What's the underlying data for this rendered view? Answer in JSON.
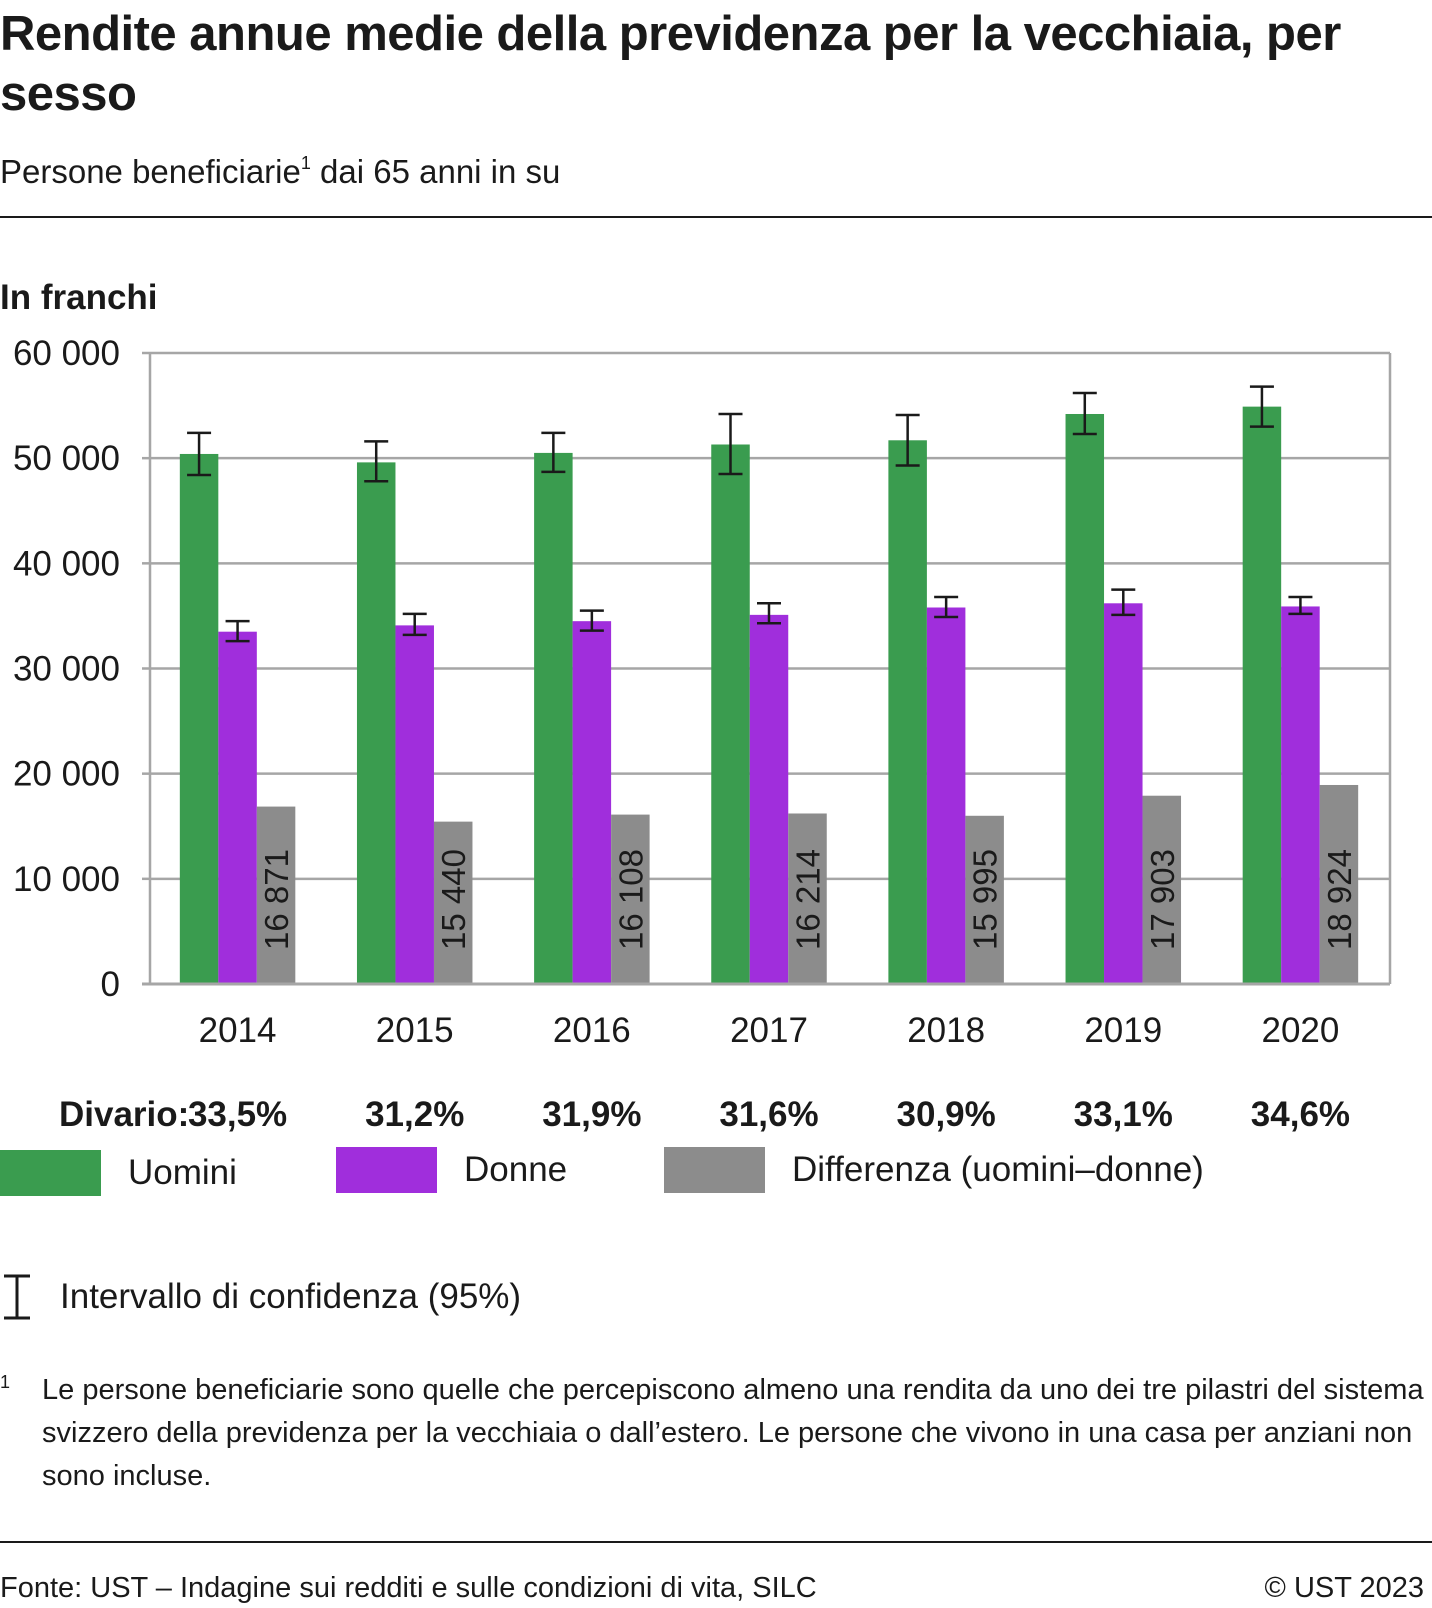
{
  "title": "Rendite annue medie della previdenza per la vecchiaia, per sesso",
  "subtitle": {
    "text": "Persone beneficiarie",
    "footnote_mark": "1",
    "rest": " dai 65 anni in su"
  },
  "unit_label": "In franchi",
  "divario": {
    "label": "Divario:",
    "values": [
      "33,5%",
      "31,2%",
      "31,9%",
      "31,6%",
      "30,9%",
      "33,1%",
      "34,6%"
    ]
  },
  "legend": {
    "men": "Uomini",
    "women": "Donne",
    "difference": "Differenza (uomini–donne)",
    "ci": "Intervallo di confidenza (95%)"
  },
  "footnote": {
    "mark": "1",
    "text": "Le persone beneficiarie sono quelle che percepiscono almeno una rendita da uno dei tre pilastri del sistema svizzero della previdenza per la vecchiaia o dall’estero. Le persone che vivono in una casa per anziani non sono incluse."
  },
  "source": "Fonte: UST – Indagine sui redditi e sulle condizioni di vita, SILC",
  "copyright": "© UST 2023",
  "colors": {
    "men": "#3a9c4f",
    "women": "#a02edc",
    "difference": "#8c8c8c",
    "grid": "#a6a6a6",
    "text": "#1a1a1a"
  },
  "chart_data": {
    "type": "bar",
    "categories": [
      "2014",
      "2015",
      "2016",
      "2017",
      "2018",
      "2019",
      "2020"
    ],
    "series": [
      {
        "name": "Uomini",
        "values": [
          50400,
          49600,
          50500,
          51300,
          51700,
          54200,
          54900
        ],
        "ci_low": [
          48400,
          47800,
          48700,
          48500,
          49300,
          52300,
          53000
        ],
        "ci_high": [
          52400,
          51600,
          52400,
          54200,
          54100,
          56200,
          56800
        ]
      },
      {
        "name": "Donne",
        "values": [
          33500,
          34100,
          34500,
          35100,
          35800,
          36200,
          35900
        ],
        "ci_low": [
          32600,
          33200,
          33600,
          34300,
          34900,
          35100,
          35200
        ],
        "ci_high": [
          34500,
          35200,
          35500,
          36200,
          36800,
          37500,
          36800
        ]
      },
      {
        "name": "Differenza (uomini–donne)",
        "values": [
          16871,
          15440,
          16108,
          16214,
          15995,
          17903,
          18924
        ]
      }
    ],
    "data_labels": [
      "16 871",
      "15 440",
      "16 108",
      "16 214",
      "15 995",
      "17 903",
      "18 924"
    ],
    "ylabel": "In franchi",
    "ylim": [
      0,
      60000
    ],
    "yticks": [
      0,
      10000,
      20000,
      30000,
      40000,
      50000,
      60000
    ],
    "ytick_labels": [
      "0",
      "10 000",
      "20 000",
      "30 000",
      "40 000",
      "50 000",
      "60 000"
    ],
    "grid": true,
    "legend_position": "bottom"
  }
}
